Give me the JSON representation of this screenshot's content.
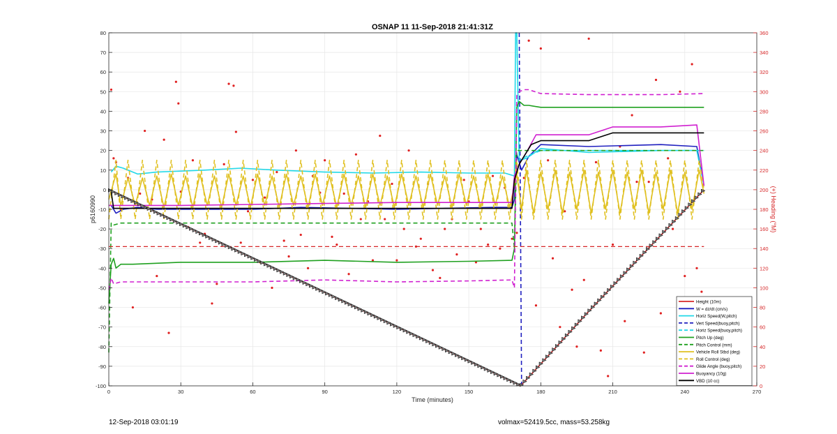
{
  "chart_data": {
    "type": "line",
    "title": "OSNAP 11 11-Sep-2018 21:41:31Z",
    "xlabel": "Time (minutes)",
    "ylabel": "p6160990",
    "y2label": "(+) Heading (°M)",
    "xlim": [
      0,
      270
    ],
    "ylim": [
      -100,
      80
    ],
    "y2lim": [
      0,
      360
    ],
    "xticks": [
      0,
      30,
      60,
      90,
      120,
      150,
      180,
      210,
      240,
      270
    ],
    "yticks": [
      -100,
      -90,
      -80,
      -70,
      -60,
      -50,
      -40,
      -30,
      -20,
      -10,
      0,
      10,
      20,
      30,
      40,
      50,
      60,
      70,
      80
    ],
    "y2ticks": [
      0,
      20,
      40,
      60,
      80,
      100,
      120,
      140,
      160,
      180,
      200,
      220,
      240,
      260,
      280,
      300,
      320,
      340,
      360
    ],
    "grid": true,
    "legend_position": "bottom-right",
    "series": [
      {
        "name": "Height (10m)",
        "color": "#d62728",
        "style": "solid",
        "x": [
          0,
          171,
          172,
          200,
          248
        ],
        "y": [
          0,
          -99.5,
          -99.5,
          -62,
          0
        ]
      },
      {
        "name": "W = dz/dt (cm/s)",
        "color": "#1f1fbf",
        "style": "solid",
        "x": [
          1,
          3,
          6,
          12,
          20,
          40,
          60,
          80,
          100,
          120,
          140,
          160,
          168,
          169,
          170,
          172,
          175,
          180,
          200,
          230,
          245,
          248
        ],
        "y": [
          -8,
          -12,
          -10,
          -9,
          -10,
          -10,
          -10,
          -9,
          -9.5,
          -10,
          -9.5,
          -9,
          -9,
          -5,
          18,
          10,
          17,
          23,
          22,
          23,
          22,
          2
        ]
      },
      {
        "name": "Horiz Speed(W,pitch)",
        "color": "#20d8e8",
        "style": "solid",
        "x": [
          1,
          3,
          6,
          12,
          20,
          40,
          55,
          70,
          90,
          110,
          130,
          150,
          165,
          169,
          169.5,
          170,
          171,
          174,
          180,
          200,
          230,
          245,
          248
        ],
        "y": [
          9,
          12,
          11,
          8,
          9,
          10,
          11,
          10,
          9,
          8.5,
          9,
          8.5,
          8.5,
          7,
          80,
          80,
          15,
          16,
          21,
          19,
          20,
          20,
          2
        ]
      },
      {
        "name": "Vert Speed(buoy,pitch)",
        "color": "#1f1fbf",
        "style": "dashed",
        "x": [
          171,
          172,
          172.5
        ],
        "y": [
          80,
          -100,
          -100
        ]
      },
      {
        "name": "Horiz Speed(buoy,pitch)",
        "color": "#20d8e8",
        "style": "dashed",
        "x": [
          170,
          171,
          174,
          180,
          248
        ],
        "y": [
          80,
          15,
          17,
          20,
          20
        ]
      },
      {
        "name": "Pitch Up (deg)",
        "color": "#1fa01f",
        "style": "solid",
        "x": [
          0,
          1,
          2,
          3,
          5,
          10,
          30,
          60,
          90,
          120,
          150,
          168,
          169,
          170,
          171,
          173,
          175,
          180,
          200,
          230,
          248
        ],
        "y": [
          -58,
          -38,
          -35,
          -40,
          -38,
          -38,
          -37,
          -37,
          -36,
          -37,
          -36.5,
          -36,
          -30,
          42,
          45,
          43,
          43,
          42,
          42,
          42,
          42
        ]
      },
      {
        "name": "Pitch Control (mm)",
        "color": "#1fa01f",
        "style": "dashed",
        "x": [
          0,
          1,
          2,
          5,
          168,
          169,
          170,
          171,
          175,
          248
        ],
        "y": [
          -83,
          -17,
          -18,
          -17,
          -17,
          -30,
          20,
          20,
          20,
          20
        ]
      },
      {
        "name": "Vehicle Roll Stbd (deg)",
        "color": "#e0c020",
        "style": "solid",
        "x": [
          0,
          3,
          5,
          8,
          11,
          14,
          17,
          20,
          23,
          26,
          29,
          32,
          35,
          38,
          41,
          44,
          47,
          50,
          53,
          56,
          59,
          62,
          65,
          68,
          71,
          74,
          77,
          80,
          83,
          86,
          89,
          92,
          95,
          98,
          101,
          104,
          107,
          110,
          113,
          116,
          119,
          122,
          125,
          128,
          131,
          134,
          137,
          140,
          143,
          146,
          149,
          152,
          155,
          158,
          161,
          164,
          167,
          170,
          172,
          174,
          177,
          180,
          183,
          186,
          189,
          192,
          195,
          198,
          201,
          204,
          207,
          210,
          213,
          216,
          219,
          222,
          225,
          228,
          231,
          234,
          237,
          240,
          243,
          246,
          248
        ],
        "y": [
          -5,
          8,
          -8,
          6,
          -8,
          6,
          -8,
          7,
          -9,
          8,
          -8,
          7,
          -9,
          8,
          -8,
          7,
          -9,
          8,
          -8,
          7,
          -9,
          8,
          -8,
          7,
          -9,
          8,
          -8,
          7,
          -9,
          8,
          -8,
          7,
          -9,
          8,
          -8,
          7,
          -9,
          8,
          -8,
          7,
          -9,
          8,
          -8,
          7,
          -9,
          8,
          -8,
          7,
          -9,
          8,
          -8,
          7,
          -9,
          8,
          -8,
          7,
          -9,
          8,
          -10,
          10,
          -12,
          9,
          -10,
          10,
          -12,
          9,
          -10,
          10,
          -12,
          9,
          -10,
          10,
          -12,
          9,
          -10,
          10,
          -12,
          9,
          -10,
          10,
          -12,
          9,
          -10,
          10,
          -2
        ]
      },
      {
        "name": "Roll Control (deg)",
        "color": "#e0c020",
        "style": "dashed",
        "x": [
          0,
          3,
          5,
          8,
          11,
          14,
          17,
          20,
          23,
          26,
          29,
          32,
          35,
          38,
          41,
          44,
          47,
          50,
          53,
          56,
          59,
          62,
          65,
          68,
          71,
          74,
          77,
          80,
          83,
          86,
          89,
          92,
          95,
          98,
          101,
          104,
          107,
          110,
          113,
          116,
          119,
          122,
          125,
          128,
          131,
          134,
          137,
          140,
          143,
          146,
          149,
          152,
          155,
          158,
          161,
          164,
          167,
          170,
          172,
          174,
          177,
          180,
          183,
          186,
          189,
          192,
          195,
          198,
          201,
          204,
          207,
          210,
          213,
          216,
          219,
          222,
          225,
          228,
          231,
          234,
          237,
          240,
          243,
          246,
          248
        ],
        "y": [
          -15,
          15,
          -15,
          15,
          -15,
          15,
          -15,
          15,
          -15,
          15,
          -15,
          15,
          -15,
          15,
          -15,
          15,
          -15,
          15,
          -15,
          15,
          -15,
          15,
          -15,
          15,
          -15,
          15,
          -15,
          15,
          -15,
          15,
          -15,
          15,
          -15,
          15,
          -15,
          15,
          -15,
          15,
          -15,
          15,
          -15,
          15,
          -15,
          15,
          -15,
          15,
          -15,
          15,
          -15,
          15,
          -15,
          15,
          -15,
          15,
          -15,
          15,
          -15,
          15,
          -15,
          15,
          -15,
          15,
          -15,
          15,
          -15,
          15,
          -15,
          15,
          -15,
          15,
          -15,
          15,
          -15,
          15,
          -15,
          15,
          -15,
          15,
          -15,
          15,
          -15,
          15,
          -15,
          15,
          0
        ]
      },
      {
        "name": "Glide Angle (buoy,pitch)",
        "color": "#d020d0",
        "style": "dashed",
        "x": [
          0,
          1,
          2,
          5,
          30,
          60,
          90,
          120,
          150,
          168,
          169,
          170,
          171,
          173,
          175,
          180,
          200,
          230,
          248
        ],
        "y": [
          -51,
          -45,
          -48,
          -47,
          -47,
          -47,
          -46,
          -47,
          -46.5,
          -46,
          -50,
          48,
          50,
          51,
          51,
          49,
          48.5,
          48.5,
          49
        ]
      },
      {
        "name": "Buoyancy (10g)",
        "color": "#d020d0",
        "style": "solid",
        "x": [
          0,
          3,
          10,
          30,
          60,
          90,
          120,
          150,
          168,
          169,
          171,
          174,
          178,
          200,
          210,
          230,
          245,
          248
        ],
        "y": [
          -8,
          -8,
          -8,
          -8,
          -7.5,
          -7,
          -6.5,
          -6.5,
          -6.5,
          7,
          13,
          19,
          28,
          28,
          32,
          32,
          33,
          2
        ]
      },
      {
        "name": "VBD (10 cc)",
        "color": "#000000",
        "style": "solid",
        "x": [
          1,
          2,
          168,
          169,
          171,
          176,
          180,
          200,
          210,
          230,
          248
        ],
        "y": [
          -1,
          -9.5,
          -9.5,
          5,
          13,
          23,
          25,
          25,
          29,
          29,
          29
        ]
      }
    ],
    "heading_points": {
      "axis": "right",
      "color": "#e02020",
      "x": [
        1,
        2,
        3,
        5,
        8,
        10,
        13,
        15,
        18,
        20,
        23,
        25,
        28,
        29,
        30,
        33,
        35,
        38,
        40,
        43,
        45,
        48,
        50,
        52,
        53,
        55,
        58,
        60,
        63,
        65,
        68,
        70,
        73,
        75,
        78,
        80,
        83,
        85,
        88,
        90,
        93,
        95,
        98,
        100,
        103,
        105,
        108,
        110,
        113,
        115,
        118,
        120,
        123,
        125,
        128,
        130,
        133,
        135,
        138,
        140,
        143,
        145,
        148,
        150,
        153,
        155,
        158,
        160,
        163,
        165,
        168,
        170,
        173,
        175,
        178,
        180,
        183,
        185,
        188,
        190,
        193,
        195,
        198,
        200,
        203,
        205,
        208,
        210,
        213,
        215,
        218,
        220,
        223,
        225,
        228,
        230,
        233,
        235,
        238,
        240,
        243,
        245,
        247
      ],
      "y": [
        302,
        232,
        228,
        180,
        212,
        80,
        196,
        260,
        190,
        112,
        251,
        54,
        310,
        288,
        198,
        162,
        230,
        146,
        155,
        84,
        104,
        226,
        308,
        306,
        259,
        146,
        178,
        210,
        126,
        192,
        100,
        218,
        148,
        132,
        240,
        154,
        120,
        214,
        197,
        230,
        152,
        144,
        196,
        114,
        236,
        170,
        188,
        128,
        255,
        170,
        206,
        128,
        160,
        240,
        142,
        150,
        206,
        118,
        110,
        160,
        170,
        134,
        210,
        188,
        126,
        160,
        144,
        214,
        140,
        202,
        150,
        156,
        212,
        352,
        82,
        344,
        230,
        130,
        60,
        178,
        98,
        40,
        108,
        354,
        228,
        36,
        10,
        144,
        244,
        66,
        276,
        208,
        34,
        208,
        312,
        74,
        232,
        160,
        300,
        112,
        328,
        120,
        96
      ]
    }
  },
  "footer": {
    "left": "12-Sep-2018 03:01:19",
    "right": "volmax=52419.5cc, mass=53.258kg"
  }
}
